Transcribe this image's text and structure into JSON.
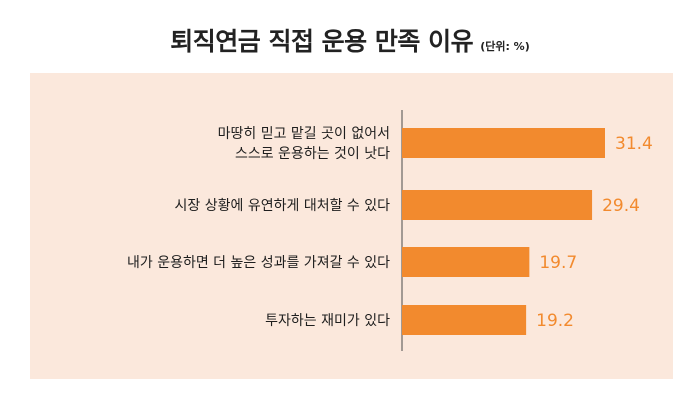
{
  "title": "퇴직연금 직접 운용 만족 이유",
  "unit": "(단위: %)",
  "colors": {
    "bar": "#f28a2e",
    "value_label": "#f28a2e",
    "panel_background": "#fbe8dc",
    "axis": "#4a4a4a",
    "category_text": "#1e1e1e"
  },
  "chart_data": {
    "type": "bar",
    "orientation": "horizontal",
    "title": "퇴직연금 직접 운용 만족 이유",
    "unit": "%",
    "categories": [
      [
        "마땅히 믿고 맡길 곳이 없어서",
        "스스로 운용하는 것이 낫다"
      ],
      [
        "시장 상황에 유연하게 대처할 수 있다"
      ],
      [
        "내가 운용하면 더 높은 성과를 가져갈 수 있다"
      ],
      [
        "투자하는 재미가 있다"
      ]
    ],
    "values": [
      31.4,
      29.4,
      19.7,
      19.2
    ],
    "value_labels": [
      "31.4",
      "29.4",
      "19.7",
      "19.2"
    ],
    "xlim": [
      0,
      31.4
    ],
    "grid": false,
    "legend": "none"
  }
}
